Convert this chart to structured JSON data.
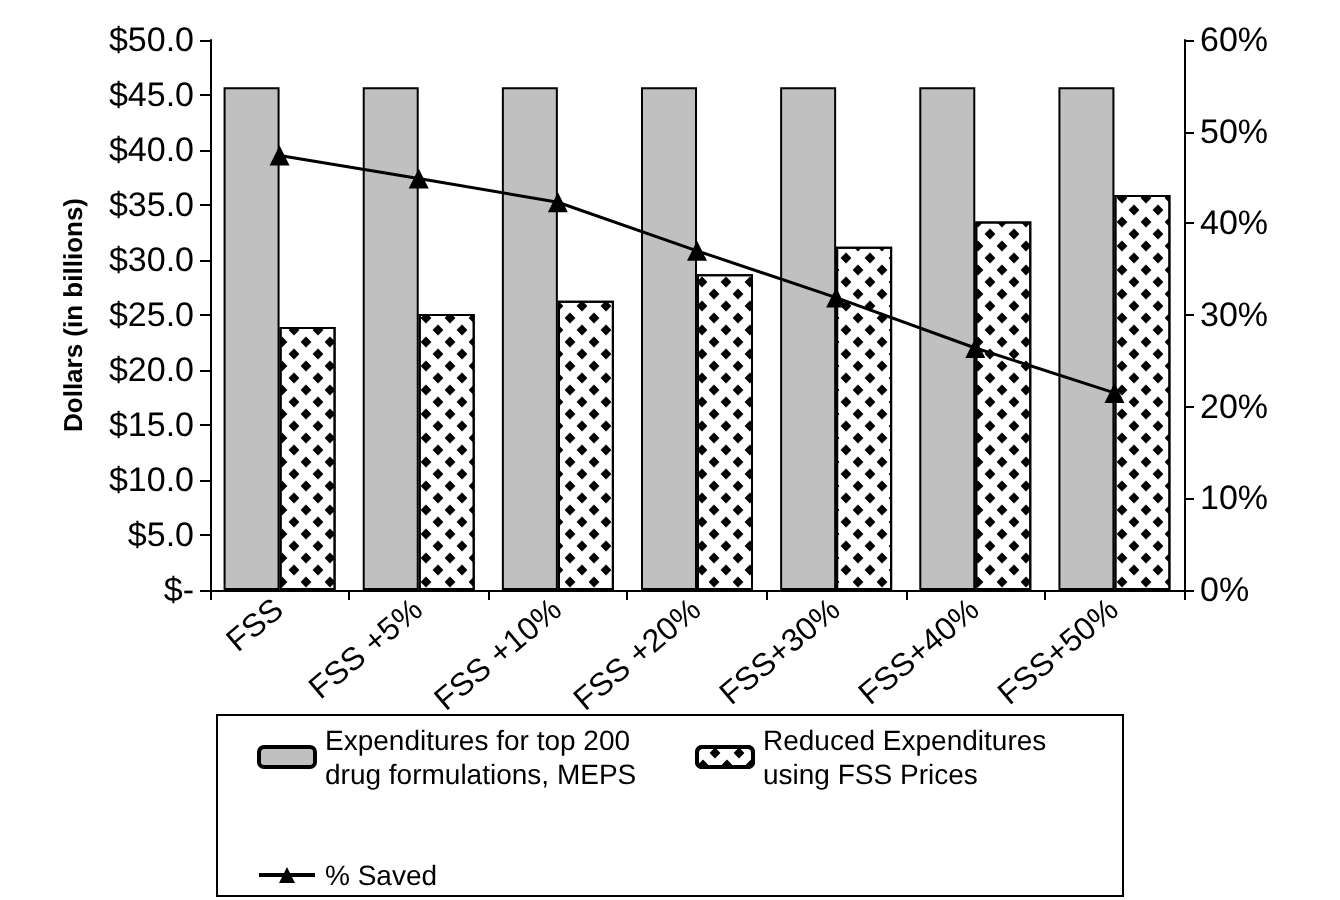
{
  "chart_data": {
    "type": "bar",
    "categories": [
      "FSS",
      "FSS +5%",
      "FSS +10%",
      "FSS +20%",
      "FSS+30%",
      "FSS+40%",
      "FSS+50%"
    ],
    "ylabel": "Dollars (in billions)",
    "series": [
      {
        "name": "Expenditures for top 200 drug formulations, MEPS",
        "color": "#c0c0c0",
        "values": [
          45.7,
          45.7,
          45.7,
          45.7,
          45.7,
          45.7,
          45.7
        ]
      },
      {
        "name": "Reduced Expenditures using FSS Prices",
        "color": "#ffffff",
        "values": [
          23.9,
          25.1,
          26.3,
          28.7,
          31.2,
          33.5,
          35.9
        ]
      },
      {
        "name": "% Saved",
        "type": "line",
        "axis": "y2",
        "color": "#000000",
        "marker": "triangle",
        "values": [
          47.4,
          44.9,
          42.3,
          37.0,
          31.9,
          26.4,
          21.5
        ]
      }
    ],
    "ylim": [
      0,
      50
    ],
    "yticks": [
      {
        "value": 0,
        "label": "$-"
      },
      {
        "value": 5,
        "label": "$5.0"
      },
      {
        "value": 10,
        "label": "$10.0"
      },
      {
        "value": 15,
        "label": "$15.0"
      },
      {
        "value": 20,
        "label": "$20.0"
      },
      {
        "value": 25,
        "label": "$25.0"
      },
      {
        "value": 30,
        "label": "$30.0"
      },
      {
        "value": 35,
        "label": "$35.0"
      },
      {
        "value": 40,
        "label": "$40.0"
      },
      {
        "value": 45,
        "label": "$45.0"
      },
      {
        "value": 50,
        "label": "$50.0"
      }
    ],
    "y2lim": [
      0,
      60
    ],
    "y2ticks": [
      {
        "value": 0,
        "label": "0%"
      },
      {
        "value": 10,
        "label": "10%"
      },
      {
        "value": 20,
        "label": "20%"
      },
      {
        "value": 30,
        "label": "30%"
      },
      {
        "value": 40,
        "label": "40%"
      },
      {
        "value": 50,
        "label": "50%"
      },
      {
        "value": 60,
        "label": "60%"
      }
    ],
    "grid": false,
    "legend": "bottom"
  }
}
